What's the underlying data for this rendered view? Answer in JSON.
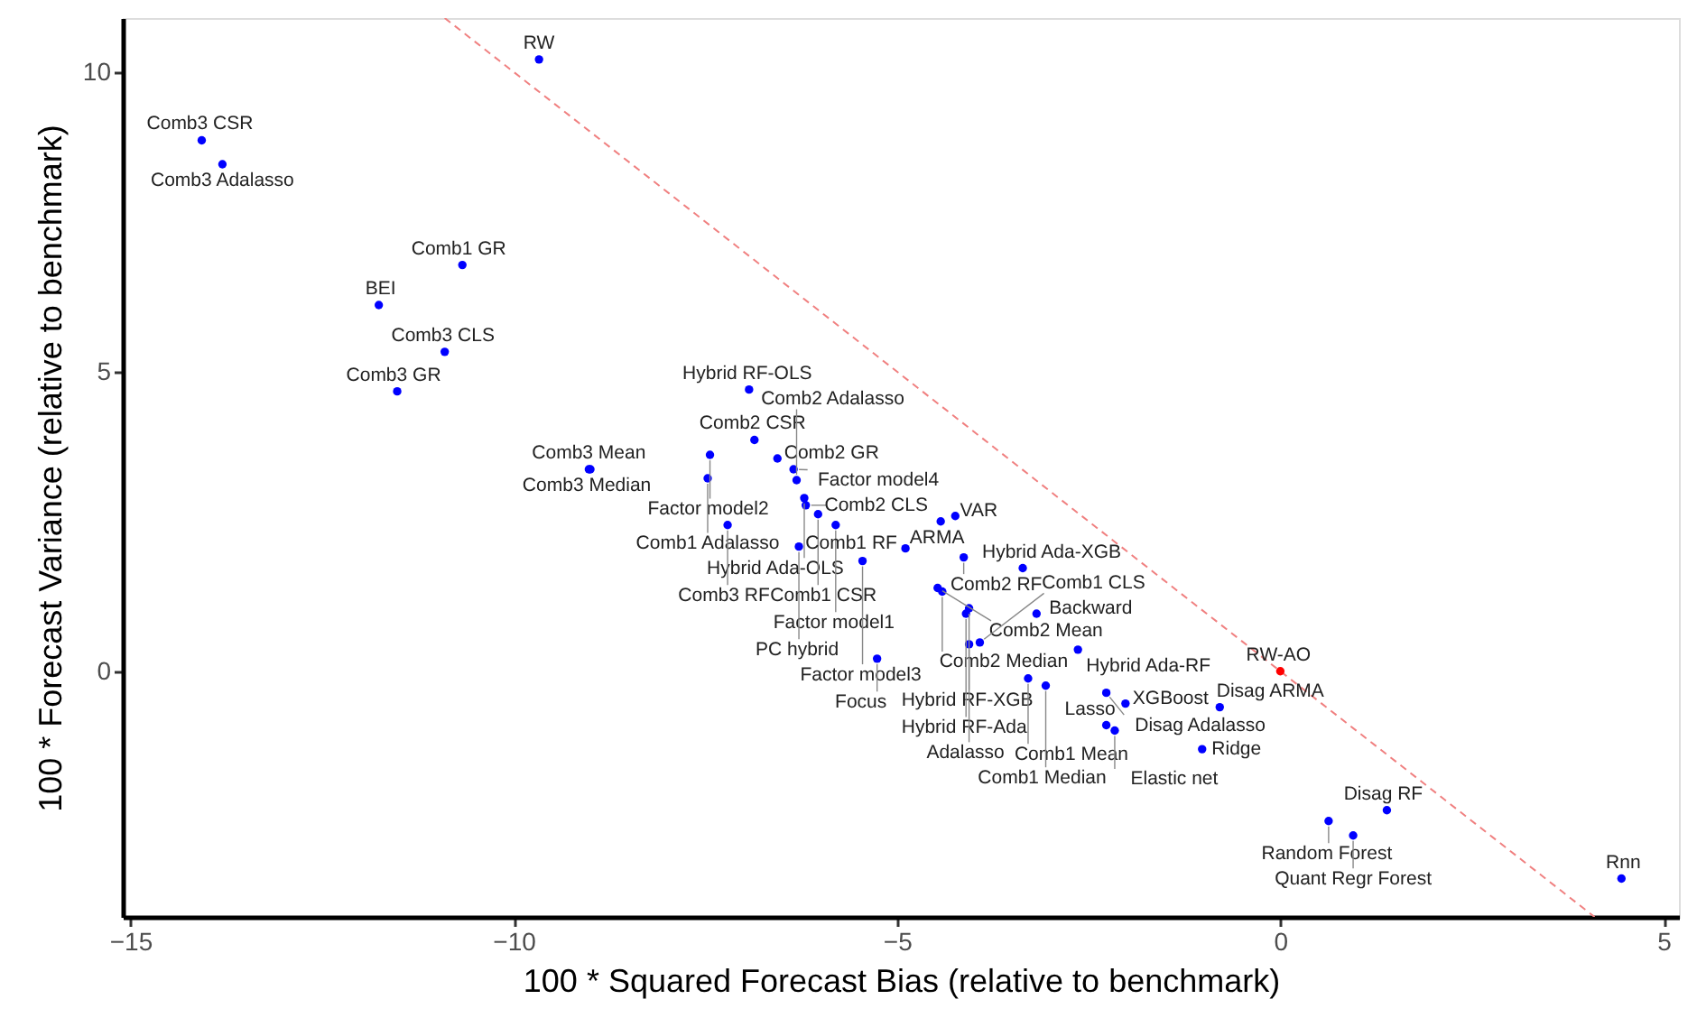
{
  "chart_data": {
    "type": "scatter",
    "xlabel": "100 * Squared Forecast Bias (relative to benchmark)",
    "ylabel": "100 * Forecast Variance (relative to benchmark)",
    "xlim": [
      -15.1,
      5.2
    ],
    "ylim": [
      -4.1,
      10.9
    ],
    "xticks": [
      -15,
      -10,
      -5,
      0,
      5
    ],
    "yticks": [
      0,
      5,
      10
    ],
    "grid": false,
    "marker": "circle",
    "line_style": "dashed",
    "series": [
      {
        "type": "line",
        "marker": "none",
        "color": "#f08080",
        "x": [
          -10.9,
          4.1
        ],
        "values": [
          10.9,
          -4.1
        ]
      },
      {
        "color": "#0000ff",
        "x": [
          -9.67,
          -14.07,
          -13.8,
          -10.67,
          -11.76,
          -10.9,
          -11.52,
          -6.93,
          -9.02,
          -9.0,
          -6.86,
          -7.44,
          -6.56,
          -6.35,
          -7.47,
          -6.31,
          -6.21,
          -6.19,
          -7.21,
          -6.03,
          -4.43,
          -4.24,
          -5.8,
          -6.28,
          -4.89,
          -4.13,
          -5.45,
          -3.36,
          -4.47,
          -4.41,
          -4.06,
          -4.1,
          -3.18,
          -3.92,
          -4.06,
          -2.64,
          -5.26,
          -3.29,
          -3.06,
          -2.27,
          -2.02,
          -0.79,
          -2.27,
          -2.16,
          -1.02,
          1.39,
          0.63,
          0.95,
          4.45
        ],
        "values": [
          10.21,
          8.86,
          8.46,
          6.78,
          6.11,
          5.33,
          4.67,
          4.7,
          3.37,
          3.37,
          3.86,
          3.61,
          3.55,
          3.37,
          3.22,
          3.19,
          2.89,
          2.77,
          2.44,
          2.62,
          2.5,
          2.59,
          2.44,
          2.08,
          2.05,
          1.9,
          1.84,
          1.72,
          1.39,
          1.33,
          1.05,
          0.96,
          0.96,
          0.48,
          0.45,
          0.36,
          0.21,
          -0.12,
          -0.24,
          -0.36,
          -0.54,
          -0.6,
          -0.9,
          -0.99,
          -1.3,
          -2.32,
          -2.5,
          -2.74,
          -3.46
        ]
      },
      {
        "color": "#ff0000",
        "x": [
          0
        ],
        "values": [
          0
        ]
      }
    ],
    "annotations": [
      {
        "text": "RW",
        "x": -9.67,
        "y": 10.21
      },
      {
        "text": "Comb3 CSR",
        "x": -14.07,
        "y": 8.86
      },
      {
        "text": "Comb3 Adalasso",
        "x": -13.8,
        "y": 8.46
      },
      {
        "text": "Comb1 GR",
        "x": -10.67,
        "y": 6.78
      },
      {
        "text": "BEI",
        "x": -11.76,
        "y": 6.11
      },
      {
        "text": "Comb3 CLS",
        "x": -10.9,
        "y": 5.33
      },
      {
        "text": "Comb3 GR",
        "x": -11.52,
        "y": 4.67
      },
      {
        "text": "Hybrid RF-OLS",
        "x": -6.93,
        "y": 4.7
      },
      {
        "text": "Comb3 Mean",
        "x": -9.02,
        "y": 3.37
      },
      {
        "text": "Comb3 Median",
        "x": -9.0,
        "y": 3.37
      },
      {
        "text": "Comb2 CSR",
        "x": -6.86,
        "y": 3.86
      },
      {
        "text": "Factor model2",
        "x": -7.44,
        "y": 3.61
      },
      {
        "text": "Comb2 GR",
        "x": -6.56,
        "y": 3.55
      },
      {
        "text": "Factor model4",
        "x": -6.35,
        "y": 3.37
      },
      {
        "text": "Comb1 Adalasso",
        "x": -7.47,
        "y": 3.22
      },
      {
        "text": "Comb2 Adalasso",
        "x": -6.31,
        "y": 3.19
      },
      {
        "text": "Hybrid Ada-OLS",
        "x": -6.21,
        "y": 2.89
      },
      {
        "text": "Comb2 CLS",
        "x": -6.19,
        "y": 2.77
      },
      {
        "text": "Comb3 RF",
        "x": -7.21,
        "y": 2.44
      },
      {
        "text": "Comb1 CSR",
        "x": -6.03,
        "y": 2.62
      },
      {
        "text": "ARMA",
        "x": -4.43,
        "y": 2.5
      },
      {
        "text": "VAR",
        "x": -4.24,
        "y": 2.59
      },
      {
        "text": "Factor model1",
        "x": -5.8,
        "y": 2.44
      },
      {
        "text": "PC hybrid",
        "x": -6.28,
        "y": 2.08
      },
      {
        "text": "Comb1 RF",
        "x": -4.89,
        "y": 2.05
      },
      {
        "text": "Comb2 RF",
        "x": -4.13,
        "y": 1.9
      },
      {
        "text": "Factor model3",
        "x": -5.45,
        "y": 1.84
      },
      {
        "text": "Hybrid Ada-XGB",
        "x": -3.36,
        "y": 1.72
      },
      {
        "text": "Comb2 Mean",
        "x": -4.47,
        "y": 1.39
      },
      {
        "text": "Comb2 Median",
        "x": -4.41,
        "y": 1.33
      },
      {
        "text": "Hybrid RF-XGB",
        "x": -4.06,
        "y": 1.05
      },
      {
        "text": "Hybrid RF-Ada",
        "x": -4.1,
        "y": 0.96
      },
      {
        "text": "Backward",
        "x": -3.18,
        "y": 0.96
      },
      {
        "text": "Comb1 CLS",
        "x": -3.92,
        "y": 0.48
      },
      {
        "text": "Adalasso",
        "x": -4.06,
        "y": 0.45
      },
      {
        "text": "Hybrid Ada-RF",
        "x": -2.64,
        "y": 0.36
      },
      {
        "text": "Focus",
        "x": -5.26,
        "y": 0.21
      },
      {
        "text": "Comb1 Mean",
        "x": -3.29,
        "y": -0.12
      },
      {
        "text": "Comb1 Median",
        "x": -3.06,
        "y": -0.24
      },
      {
        "text": "Disag Adalasso",
        "x": -2.27,
        "y": -0.36
      },
      {
        "text": "XGBoost",
        "x": -2.02,
        "y": -0.54
      },
      {
        "text": "Disag ARMA",
        "x": -0.79,
        "y": -0.6
      },
      {
        "text": "Lasso",
        "x": -2.27,
        "y": -0.9
      },
      {
        "text": "Elastic net",
        "x": -2.16,
        "y": -0.99
      },
      {
        "text": "Ridge",
        "x": -1.02,
        "y": -1.3
      },
      {
        "text": "RW-AO",
        "x": 0,
        "y": 0
      },
      {
        "text": "Disag RF",
        "x": 1.39,
        "y": -2.32
      },
      {
        "text": "Random Forest",
        "x": 0.63,
        "y": -2.5
      },
      {
        "text": "Quant Regr Forest",
        "x": 0.95,
        "y": -2.74
      },
      {
        "text": "Rnn",
        "x": 4.45,
        "y": -3.46
      }
    ]
  }
}
